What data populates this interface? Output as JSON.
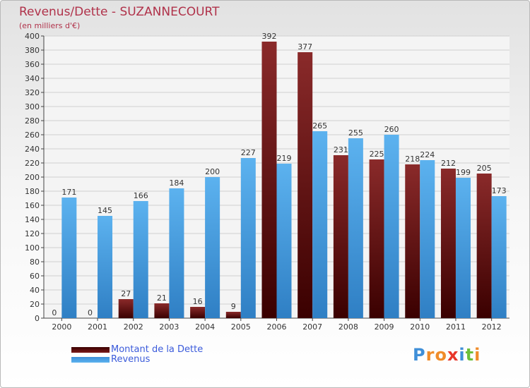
{
  "chart_data": {
    "type": "bar",
    "title": "Revenus/Dette - SUZANNECOURT",
    "subtitle": "(en milliers d'€)",
    "xlabel": "",
    "ylabel": "",
    "ylim": [
      0,
      400
    ],
    "ytick_step": 20,
    "grid": true,
    "categories": [
      "2000",
      "2001",
      "2002",
      "2003",
      "2004",
      "2005",
      "2006",
      "2007",
      "2008",
      "2009",
      "2010",
      "2011",
      "2012"
    ],
    "series": [
      {
        "name": "Montant de la Dette",
        "color": "#7a1a1a",
        "values": [
          0,
          0,
          27,
          21,
          16,
          9,
          392,
          377,
          231,
          225,
          218,
          212,
          205
        ]
      },
      {
        "name": "Revenus",
        "color": "#4aa3e8",
        "values": [
          171,
          145,
          166,
          184,
          200,
          227,
          219,
          265,
          255,
          260,
          224,
          199,
          173
        ]
      }
    ],
    "legend_position": "bottom-left"
  },
  "logo": {
    "letters": [
      "P",
      "r",
      "o",
      "x",
      "i",
      "t",
      "i"
    ],
    "colors": [
      "#3f8fd8",
      "#f08c2a",
      "#f08c2a",
      "#e8362a",
      "#3f8fd8",
      "#6cbf3a",
      "#f08c2a"
    ]
  }
}
